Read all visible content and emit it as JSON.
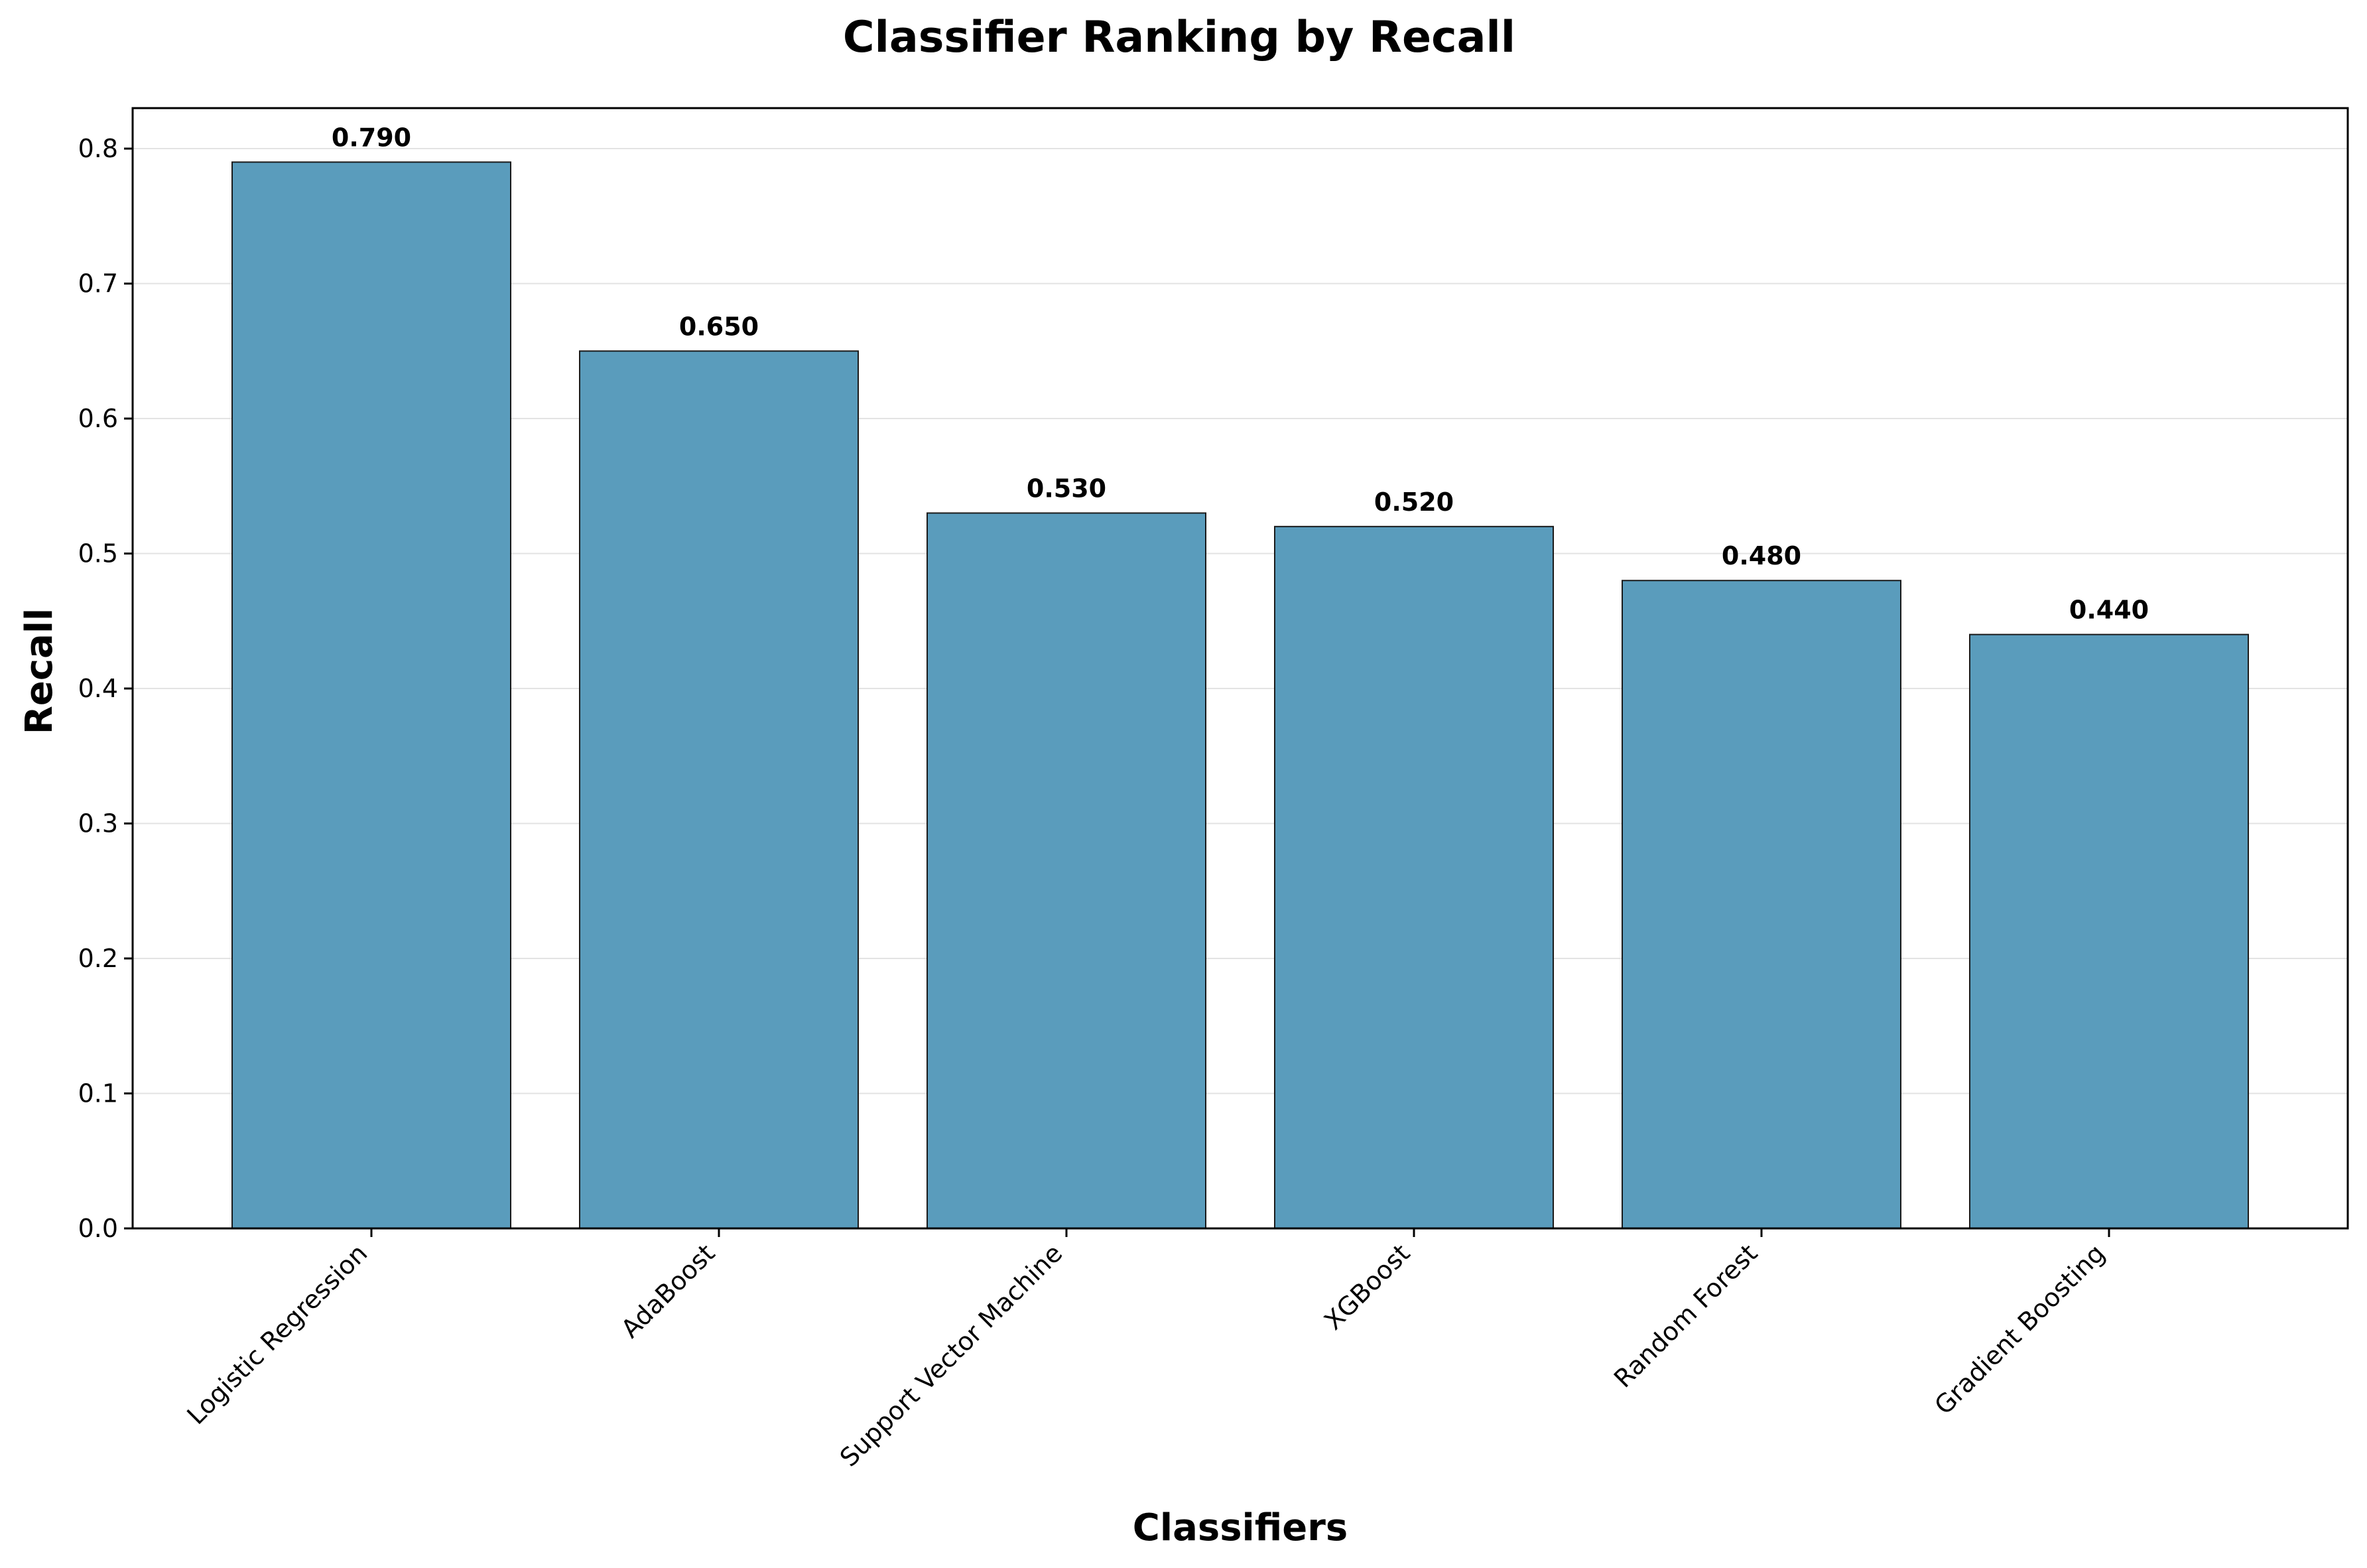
{
  "chart_data": {
    "type": "bar",
    "title": "Classifier Ranking by Recall",
    "xlabel": "Classifiers",
    "ylabel": "Recall",
    "categories": [
      "Logistic Regression",
      "AdaBoost",
      "Support Vector Machine",
      "XGBoost",
      "Random Forest",
      "Gradient Boosting"
    ],
    "values": [
      0.79,
      0.65,
      0.53,
      0.52,
      0.48,
      0.44
    ],
    "data_labels": [
      "0.790",
      "0.650",
      "0.530",
      "0.520",
      "0.480",
      "0.440"
    ],
    "yticks": [
      "0.0",
      "0.1",
      "0.2",
      "0.3",
      "0.4",
      "0.5",
      "0.6",
      "0.7",
      "0.8"
    ],
    "ylim": [
      0,
      0.83
    ],
    "grid": "y",
    "legend": "none",
    "colors": {
      "bar": "#5a9cbc",
      "bar_edge": "#1a1a1a",
      "grid": "#e3e3e3",
      "axis": "#000000"
    }
  }
}
